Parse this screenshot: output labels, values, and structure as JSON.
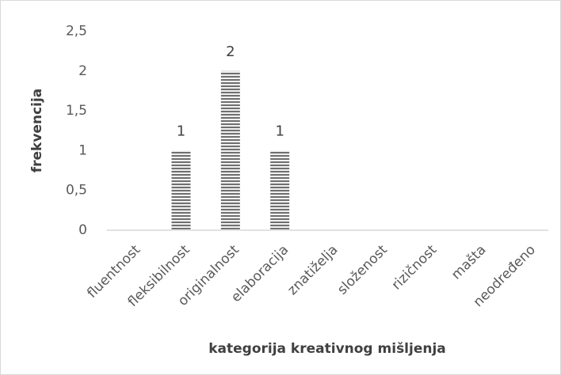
{
  "chart_data": {
    "type": "bar",
    "x_label": "kategorija kreativnog mišljenja",
    "y_label": "frekvencija",
    "categories": [
      "fluentnost",
      "fleksibilnost",
      "originalnost",
      "elaboracija",
      "znatiželja",
      "složenost",
      "rizičnost",
      "mašta",
      "neodređeno"
    ],
    "values": [
      0,
      1,
      2,
      1,
      0,
      0,
      0,
      0,
      0
    ],
    "color": "#7f7f7f",
    "ylim": [
      0,
      2.5
    ],
    "yticks": [
      0,
      {
        "value": 0.5,
        "label": "0,5"
      },
      1,
      {
        "value": 1.5,
        "label": "1,5"
      },
      2,
      {
        "value": 2.5,
        "label": "2,5"
      }
    ],
    "grid": false
  }
}
